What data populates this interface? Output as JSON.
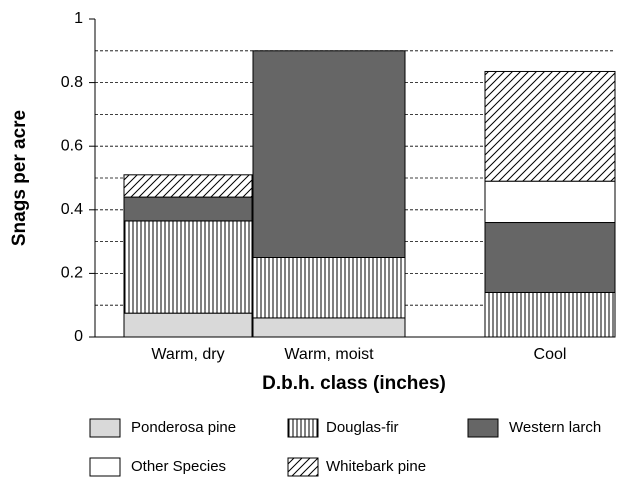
{
  "chart_data": {
    "type": "stacked_bar",
    "x_label": "D.b.h. class (inches)",
    "y_label": "Snags per acre",
    "categories": [
      "Warm, dry",
      "Warm, moist",
      "Cool"
    ],
    "series": [
      {
        "name": "Ponderosa pine",
        "color": "#d9d9d9",
        "pattern": "solid",
        "values": [
          0.075,
          0.06,
          0
        ]
      },
      {
        "name": "Douglas-fir",
        "color": "#ffffff",
        "pattern": "vertical",
        "values": [
          0.29,
          0.19,
          0.14
        ]
      },
      {
        "name": "Western larch",
        "color": "#666666",
        "pattern": "solid",
        "values": [
          0.075,
          0.65,
          0.22
        ]
      },
      {
        "name": "Other Species",
        "color": "#ffffff",
        "pattern": "solid",
        "values": [
          0,
          0,
          0.13
        ]
      },
      {
        "name": "Whitebark pine",
        "color": "#ffffff",
        "pattern": "diagonal",
        "values": [
          0.07,
          0,
          0.345
        ]
      }
    ],
    "ylim": [
      0,
      1
    ],
    "yticks": [
      0,
      0.2,
      0.4,
      0.6,
      0.8,
      1
    ],
    "grid_ticks": [
      0.1,
      0.2,
      0.3,
      0.4,
      0.5,
      0.6,
      0.7,
      0.8,
      0.9
    ],
    "grid": true
  }
}
